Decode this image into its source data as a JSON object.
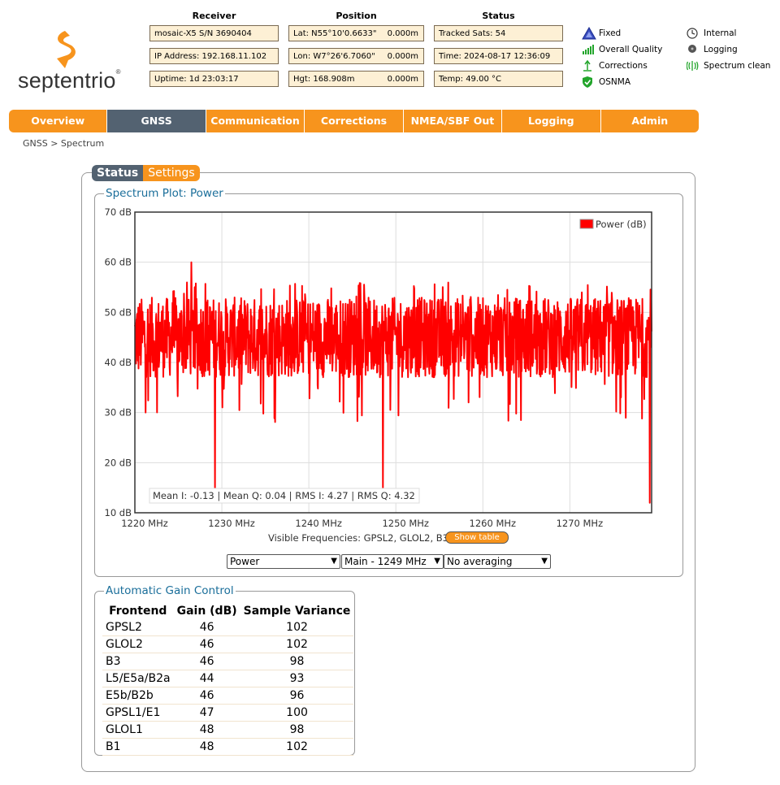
{
  "logo": {
    "text": "septentrio",
    "tm": "®"
  },
  "header": {
    "receiver": {
      "heading": "Receiver",
      "fields": [
        "mosaic-X5 S/N 3690404",
        "IP Address: 192.168.11.102",
        "Uptime: 1d 23:03:17"
      ]
    },
    "position": {
      "heading": "Position",
      "fields": [
        {
          "label": "Lat:  N55°10'0.6633\"",
          "value": "0.000m"
        },
        {
          "label": "Lon: W7°26'6.7060\"",
          "value": "0.000m"
        },
        {
          "label": "Hgt: 168.908m",
          "value": "0.000m"
        }
      ]
    },
    "status": {
      "heading": "Status",
      "fields": [
        "Tracked Sats: 54",
        "Time: 2024-08-17 12:36:09",
        "Temp: 49.00 °C"
      ]
    }
  },
  "indicators": {
    "left": [
      {
        "label": "Fixed",
        "icon": "triangle-icon",
        "color": "#3b4fbf"
      },
      {
        "label": "Overall Quality",
        "icon": "signal-bars-icon",
        "color": "#22a52b"
      },
      {
        "label": "Corrections",
        "icon": "antenna-icon",
        "color": "#22a52b"
      },
      {
        "label": "OSNMA",
        "icon": "shield-check-icon",
        "color": "#22a52b"
      }
    ],
    "right": [
      {
        "label": "Internal",
        "icon": "clock-icon"
      },
      {
        "label": "Logging",
        "icon": "disk-icon"
      },
      {
        "label": "Spectrum clean",
        "icon": "spectrum-icon",
        "color": "#22a52b"
      }
    ]
  },
  "nav": {
    "tabs": [
      "Overview",
      "GNSS",
      "Communication",
      "Corrections",
      "NMEA/SBF Out",
      "Logging",
      "Admin"
    ],
    "active": "GNSS"
  },
  "breadcrumb": "GNSS > Spectrum",
  "subtabs": {
    "status": "Status",
    "settings": "Settings"
  },
  "spectrum": {
    "legend": "Spectrum Plot: Power",
    "stats": "Mean I: -0.13 | Mean Q: 0.04 | RMS I: 4.27 | RMS Q: 4.32",
    "visible_frequencies": "Visible Frequencies: GPSL2, GLOL2, B3",
    "show_table": "Show table",
    "selects": {
      "mode": "Power",
      "band": "Main - 1249 MHz",
      "averaging": "No averaging"
    }
  },
  "chart_data": {
    "type": "line",
    "series": [
      {
        "name": "Power (dB)",
        "color": "#ff0000",
        "spikes": [
          {
            "x": 1226.5,
            "y": 60
          },
          {
            "x": 1229.2,
            "y": 15
          },
          {
            "x": 1248.5,
            "y": 15
          },
          {
            "x": 1279.2,
            "y": 12
          }
        ],
        "typical_range": [
          37,
          53
        ]
      }
    ],
    "xlim": [
      1220,
      1279.4
    ],
    "ylim": [
      10,
      70
    ],
    "x_ticks": [
      "1220 MHz",
      "1230 MHz",
      "1240 MHz",
      "1250 MHz",
      "1260 MHz",
      "1270 MHz"
    ],
    "x_tick_values": [
      1220,
      1230,
      1240,
      1250,
      1260,
      1270
    ],
    "y_ticks": [
      "70 dB",
      "60 dB",
      "50 dB",
      "40 dB",
      "30 dB",
      "20 dB",
      "10 dB"
    ],
    "y_tick_values": [
      70,
      60,
      50,
      40,
      30,
      20,
      10
    ],
    "grid": true,
    "legend_position": "top-right"
  },
  "agc": {
    "legend": "Automatic Gain Control",
    "headers": [
      "Frontend",
      "Gain (dB)",
      "Sample Variance"
    ],
    "rows": [
      [
        "GPSL2",
        "46",
        "102"
      ],
      [
        "GLOL2",
        "46",
        "102"
      ],
      [
        "B3",
        "46",
        "98"
      ],
      [
        "L5/E5a/B2a",
        "44",
        "93"
      ],
      [
        "E5b/B2b",
        "46",
        "96"
      ],
      [
        "GPSL1/E1",
        "47",
        "100"
      ],
      [
        "GLOL1",
        "48",
        "98"
      ],
      [
        "B1",
        "48",
        "102"
      ]
    ]
  }
}
